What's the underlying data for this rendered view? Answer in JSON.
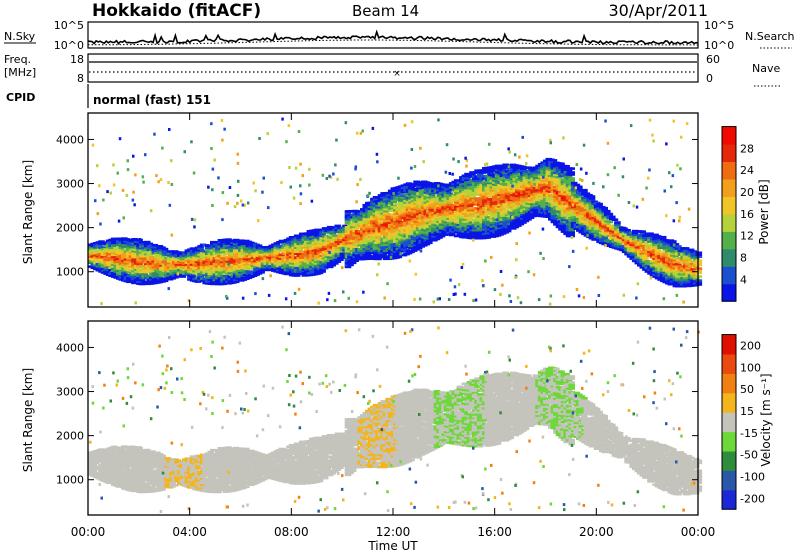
{
  "header": {
    "station": "Hokkaido (fitACF)",
    "beam": "Beam 14",
    "date": "30/Apr/2011"
  },
  "noise_panel": {
    "left_label": "N.Sky",
    "right_label": "N.Search",
    "left_ticks": [
      "10^5",
      "10^0"
    ],
    "right_ticks": [
      "10^5",
      "10^0"
    ]
  },
  "freq_panel": {
    "left_label_line1": "Freq.",
    "left_label_line2": "[MHz]",
    "left_ticks": [
      "18",
      "8"
    ],
    "right_label": "Nave",
    "right_ticks": [
      "60",
      "0"
    ]
  },
  "cpid": {
    "label": "CPID",
    "value": "normal (fast) 151"
  },
  "time_axis": {
    "label": "Time UT",
    "ticks": [
      "00:00",
      "04:00",
      "08:00",
      "12:00",
      "16:00",
      "20:00",
      "00:00"
    ]
  },
  "chart_data": [
    {
      "type": "heatmap",
      "title": "Power",
      "ylabel": "Slant Range [km]",
      "xlabel": "Time UT",
      "ylim": [
        200,
        4600
      ],
      "xlim": [
        0,
        24
      ],
      "yticks": [
        "1000",
        "2000",
        "3000",
        "4000"
      ],
      "colorbar_label": "Power [dB]",
      "colorbar_ticks": [
        "28",
        "24",
        "20",
        "16",
        "12",
        "8",
        "4"
      ],
      "colorscale": [
        "#0a14e6",
        "#1a4fd0",
        "#2e8c6a",
        "#54b04a",
        "#b6d23a",
        "#f0c528",
        "#f2a01c",
        "#f06c12",
        "#e6280a",
        "#f00a00"
      ],
      "main_echo_band": {
        "hours": [
          0,
          1,
          2,
          3,
          4,
          5,
          6,
          7,
          8,
          9,
          10,
          11,
          12,
          13,
          14,
          15,
          16,
          17,
          18,
          19,
          20,
          21,
          22,
          23,
          24
        ],
        "range_km": [
          1350,
          1300,
          1200,
          1150,
          1150,
          1200,
          1250,
          1300,
          1350,
          1450,
          1700,
          1950,
          2100,
          2300,
          2400,
          2500,
          2600,
          2750,
          2900,
          2500,
          2100,
          1700,
          1400,
          1150,
          1050
        ]
      }
    },
    {
      "type": "heatmap",
      "title": "Velocity",
      "ylabel": "Slant Range [km]",
      "xlabel": "Time UT",
      "ylim": [
        200,
        4600
      ],
      "xlim": [
        0,
        24
      ],
      "yticks": [
        "1000",
        "2000",
        "3000",
        "4000"
      ],
      "colorbar_label": "Velocity [m s⁻¹]",
      "colorbar_ticks": [
        "200",
        "100",
        "50",
        "15",
        "-15",
        "-50",
        "-100",
        "-200"
      ],
      "colorscale": [
        "#1a28d8",
        "#2a58a8",
        "#2e8c3c",
        "#6ed83a",
        "#c4c4bc",
        "#f4b41c",
        "#f08012",
        "#ea4a0e",
        "#e01000"
      ],
      "main_echo_band": {
        "hours": [
          0,
          1,
          2,
          3,
          4,
          5,
          6,
          7,
          8,
          9,
          10,
          11,
          12,
          13,
          14,
          15,
          16,
          17,
          18,
          19,
          20,
          21,
          22,
          23,
          24
        ],
        "range_km": [
          1350,
          1300,
          1200,
          1150,
          1150,
          1200,
          1250,
          1300,
          1350,
          1450,
          1700,
          1950,
          2100,
          2300,
          2400,
          2500,
          2600,
          2750,
          2900,
          2500,
          2100,
          1700,
          1400,
          1150,
          1050
        ]
      }
    }
  ]
}
